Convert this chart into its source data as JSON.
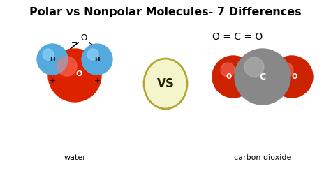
{
  "title": "Polar vs Nonpolar Molecules- 7 Differences",
  "title_fontsize": 11.5,
  "background_color": "#ffffff",
  "water_label": "water",
  "co2_label": "carbon dioxide",
  "vs_text": "VS",
  "co2_formula": "O = C = O",
  "water_O_color": "#dd2200",
  "water_H_color": "#55aadd",
  "co2_O_color": "#cc2200",
  "co2_C_color": "#888888",
  "vs_bg_color": "#f5f5cc",
  "vs_border_color": "#b0a830",
  "minus_sign": "−",
  "plus_sign": "+"
}
